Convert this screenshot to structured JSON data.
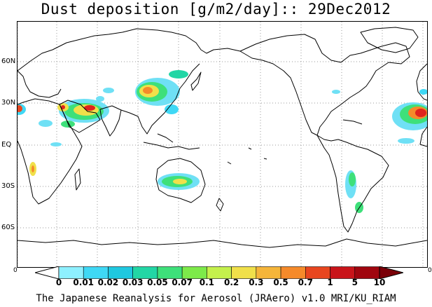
{
  "title": "Dust deposition [g/m2/day]:: 29Dec2012",
  "map": {
    "latitude_labels": [
      "60N",
      "30N",
      "EQ",
      "30S",
      "60S"
    ],
    "grid": "dotted",
    "colors": {
      "land_outline": "#000000",
      "gridline": "#888888",
      "low": "#6fe0f5",
      "mid": "#22d6a5",
      "mid_high": "#f0e04a",
      "high": "#f58a2a",
      "peak": "#e0231d"
    },
    "dust_regions": [
      "Sahara",
      "Arabian Peninsula",
      "Taklamakan / Gobi",
      "Australia",
      "South America"
    ]
  },
  "colorbar": {
    "edge_left": "0",
    "edge_right": "0",
    "ticks": [
      "0",
      "0.01",
      "0.02",
      "0.03",
      "0.05",
      "0.07",
      "0.1",
      "0.2",
      "0.3",
      "0.5",
      "0.7",
      "1",
      "5",
      "10"
    ],
    "colors": [
      "#ffffff",
      "#8ef0ff",
      "#3fd8f5",
      "#1fc8e0",
      "#22d6a5",
      "#3ee07a",
      "#7dea4a",
      "#c4f04c",
      "#f0e04a",
      "#f5b53a",
      "#f58a2a",
      "#e8461f",
      "#c9141a",
      "#a0060f",
      "#7a0008"
    ]
  },
  "credit": "The Japanese Reanalysis for Aerosol (JRAero) v1.0 MRI/KU_RIAM"
}
